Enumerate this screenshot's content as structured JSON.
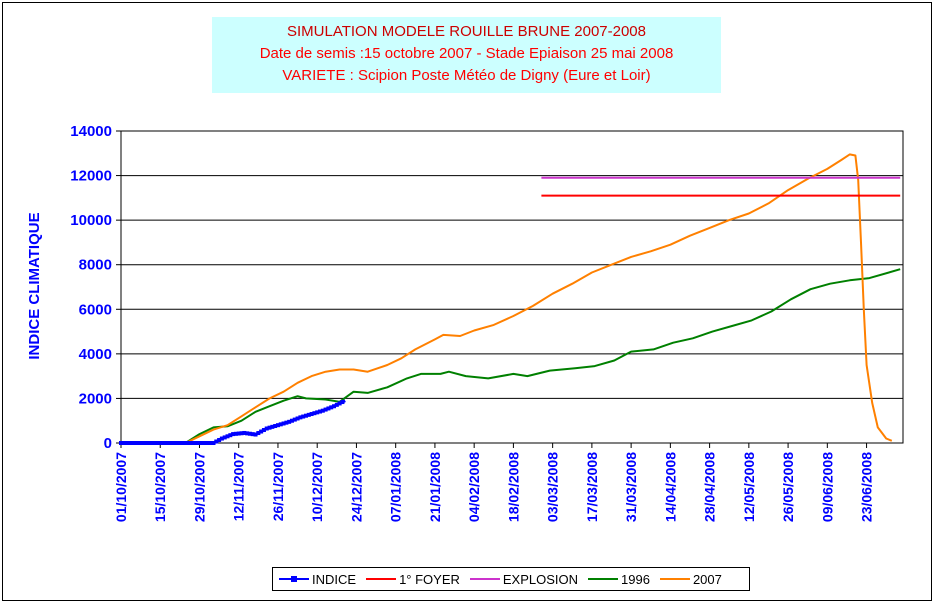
{
  "title": {
    "line1": "SIMULATION MODELE ROUILLE BRUNE 2007-2008",
    "line2": "Date de semis :15 octobre 2007 - Stade Epiaison 25 mai 2008",
    "line3": "VARIETE : Scipion   Poste Météo de Digny (Eure et Loir)"
  },
  "chart_data": {
    "type": "line",
    "ylabel": "INDICE CLIMATIQUE",
    "xlabel": "",
    "ylim": [
      0,
      14000
    ],
    "yticks": [
      "0",
      "2000",
      "4000",
      "6000",
      "8000",
      "10000",
      "12000",
      "14000"
    ],
    "xlim": [
      "2007-10-01",
      "2008-07-06"
    ],
    "xticks": [
      "01/10/2007",
      "15/10/2007",
      "29/10/2007",
      "12/11/2007",
      "26/11/2007",
      "10/12/2007",
      "24/12/2007",
      "07/01/2008",
      "21/01/2008",
      "04/02/2008",
      "18/02/2008",
      "03/03/2008",
      "17/03/2008",
      "31/03/2008",
      "14/04/2008",
      "28/04/2008",
      "12/05/2008",
      "26/05/2008",
      "09/06/2008",
      "23/06/2008"
    ],
    "grid": "horizontal",
    "legend_position": "bottom",
    "series": [
      {
        "name": "INDICE",
        "color": "#0000ff",
        "marker": "square",
        "points": [
          [
            "2007-10-01",
            0
          ],
          [
            "2007-10-15",
            0
          ],
          [
            "2007-10-24",
            0
          ],
          [
            "2007-10-29",
            0
          ],
          [
            "2007-11-03",
            0
          ],
          [
            "2007-11-06",
            200
          ],
          [
            "2007-11-10",
            400
          ],
          [
            "2007-11-14",
            450
          ],
          [
            "2007-11-18",
            380
          ],
          [
            "2007-11-22",
            650
          ],
          [
            "2007-11-26",
            800
          ],
          [
            "2007-11-30",
            950
          ],
          [
            "2007-12-04",
            1150
          ],
          [
            "2007-12-08",
            1300
          ],
          [
            "2007-12-12",
            1450
          ],
          [
            "2007-12-16",
            1650
          ],
          [
            "2007-12-20",
            1900
          ]
        ]
      },
      {
        "name": "1° FOYER",
        "color": "#ff0000",
        "points": [
          [
            "2008-02-28",
            11100
          ],
          [
            "2008-07-05",
            11100
          ]
        ]
      },
      {
        "name": "EXPLOSION",
        "color": "#cc33cc",
        "points": [
          [
            "2008-02-28",
            11900
          ],
          [
            "2008-07-05",
            11900
          ]
        ]
      },
      {
        "name": "1996",
        "color": "#008000",
        "points": [
          [
            "2007-10-01",
            0
          ],
          [
            "2007-10-24",
            0
          ],
          [
            "2007-10-29",
            400
          ],
          [
            "2007-11-03",
            700
          ],
          [
            "2007-11-08",
            750
          ],
          [
            "2007-11-13",
            1000
          ],
          [
            "2007-11-18",
            1400
          ],
          [
            "2007-11-23",
            1650
          ],
          [
            "2007-11-28",
            1900
          ],
          [
            "2007-12-03",
            2100
          ],
          [
            "2007-12-06",
            2000
          ],
          [
            "2007-12-13",
            1950
          ],
          [
            "2007-12-18",
            1850
          ],
          [
            "2007-12-23",
            2300
          ],
          [
            "2007-12-28",
            2250
          ],
          [
            "2008-01-04",
            2500
          ],
          [
            "2008-01-11",
            2900
          ],
          [
            "2008-01-16",
            3100
          ],
          [
            "2008-01-23",
            3100
          ],
          [
            "2008-01-26",
            3200
          ],
          [
            "2008-02-01",
            3000
          ],
          [
            "2008-02-09",
            2900
          ],
          [
            "2008-02-18",
            3100
          ],
          [
            "2008-02-23",
            3000
          ],
          [
            "2008-03-02",
            3250
          ],
          [
            "2008-03-11",
            3350
          ],
          [
            "2008-03-18",
            3450
          ],
          [
            "2008-03-25",
            3700
          ],
          [
            "2008-03-31",
            4100
          ],
          [
            "2008-04-08",
            4200
          ],
          [
            "2008-04-15",
            4500
          ],
          [
            "2008-04-22",
            4700
          ],
          [
            "2008-04-29",
            5000
          ],
          [
            "2008-05-06",
            5250
          ],
          [
            "2008-05-13",
            5500
          ],
          [
            "2008-05-20",
            5900
          ],
          [
            "2008-05-27",
            6450
          ],
          [
            "2008-06-03",
            6900
          ],
          [
            "2008-06-10",
            7150
          ],
          [
            "2008-06-17",
            7300
          ],
          [
            "2008-06-24",
            7400
          ],
          [
            "2008-07-05",
            7800
          ]
        ]
      },
      {
        "name": "2007",
        "color": "#ff8000",
        "points": [
          [
            "2007-10-01",
            0
          ],
          [
            "2007-10-24",
            0
          ],
          [
            "2007-10-29",
            300
          ],
          [
            "2007-11-03",
            600
          ],
          [
            "2007-11-08",
            800
          ],
          [
            "2007-11-13",
            1200
          ],
          [
            "2007-11-18",
            1600
          ],
          [
            "2007-11-23",
            2000
          ],
          [
            "2007-11-28",
            2300
          ],
          [
            "2007-12-03",
            2700
          ],
          [
            "2007-12-08",
            3000
          ],
          [
            "2007-12-13",
            3200
          ],
          [
            "2007-12-18",
            3300
          ],
          [
            "2007-12-23",
            3300
          ],
          [
            "2007-12-28",
            3200
          ],
          [
            "2008-01-04",
            3500
          ],
          [
            "2008-01-09",
            3800
          ],
          [
            "2008-01-14",
            4200
          ],
          [
            "2008-01-21",
            4650
          ],
          [
            "2008-01-24",
            4850
          ],
          [
            "2008-01-30",
            4800
          ],
          [
            "2008-02-04",
            5050
          ],
          [
            "2008-02-11",
            5300
          ],
          [
            "2008-02-18",
            5700
          ],
          [
            "2008-02-25",
            6150
          ],
          [
            "2008-03-03",
            6700
          ],
          [
            "2008-03-10",
            7150
          ],
          [
            "2008-03-17",
            7650
          ],
          [
            "2008-03-24",
            8000
          ],
          [
            "2008-03-31",
            8350
          ],
          [
            "2008-04-07",
            8600
          ],
          [
            "2008-04-14",
            8900
          ],
          [
            "2008-04-21",
            9300
          ],
          [
            "2008-04-28",
            9650
          ],
          [
            "2008-05-05",
            10000
          ],
          [
            "2008-05-12",
            10300
          ],
          [
            "2008-05-19",
            10750
          ],
          [
            "2008-05-26",
            11350
          ],
          [
            "2008-06-02",
            11850
          ],
          [
            "2008-06-09",
            12300
          ],
          [
            "2008-06-14",
            12700
          ],
          [
            "2008-06-17",
            12950
          ],
          [
            "2008-06-19",
            12900
          ],
          [
            "2008-06-20",
            11800
          ],
          [
            "2008-06-21",
            9000
          ],
          [
            "2008-06-22",
            6000
          ],
          [
            "2008-06-23",
            3500
          ],
          [
            "2008-06-25",
            1800
          ],
          [
            "2008-06-27",
            700
          ],
          [
            "2008-06-30",
            200
          ],
          [
            "2008-07-02",
            100
          ]
        ]
      }
    ]
  }
}
